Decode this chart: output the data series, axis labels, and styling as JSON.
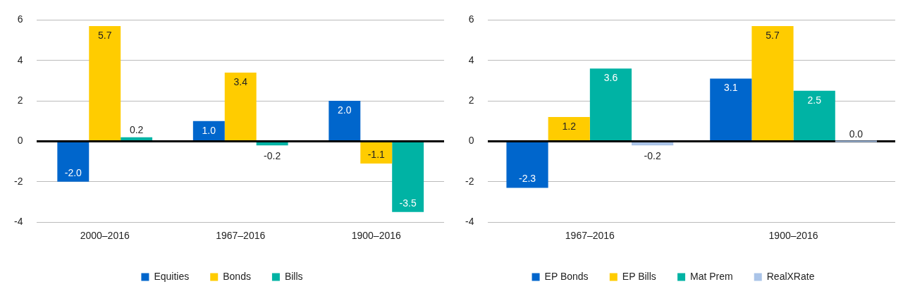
{
  "chart_data": [
    {
      "type": "bar",
      "categories": [
        "2000–2016",
        "1967–2016",
        "1900–2016"
      ],
      "series": [
        {
          "name": "Equities",
          "color": "#0066cc",
          "values": [
            -2.0,
            1.0,
            2.0
          ],
          "value_labels": [
            "-2.0",
            "1.0",
            "2.0"
          ]
        },
        {
          "name": "Bonds",
          "color": "#ffcc00",
          "values": [
            5.7,
            3.4,
            -1.1
          ],
          "value_labels": [
            "5.7",
            "3.4",
            "-1.1"
          ]
        },
        {
          "name": "Bills",
          "color": "#00b3a4",
          "values": [
            0.2,
            -0.2,
            -3.5
          ],
          "value_labels": [
            "0.2",
            "-0.2",
            "-3.5"
          ]
        }
      ],
      "ylim": [
        -4,
        6
      ],
      "yticks": [
        -4,
        -2,
        0,
        2,
        4,
        6
      ],
      "grid": "y",
      "legend": "bottom"
    },
    {
      "type": "bar",
      "categories": [
        "1967–2016",
        "1900–2016"
      ],
      "series": [
        {
          "name": "EP Bonds",
          "color": "#0066cc",
          "values": [
            -2.3,
            3.1
          ],
          "value_labels": [
            "-2.3",
            "3.1"
          ]
        },
        {
          "name": "EP Bills",
          "color": "#ffcc00",
          "values": [
            1.2,
            5.7
          ],
          "value_labels": [
            "1.2",
            "5.7"
          ]
        },
        {
          "name": "Mat Prem",
          "color": "#00b3a4",
          "values": [
            3.6,
            2.5
          ],
          "value_labels": [
            "3.6",
            "2.5"
          ]
        },
        {
          "name": "RealXRate",
          "color": "#aac4e8",
          "values": [
            -0.2,
            0.0
          ],
          "value_labels": [
            "-0.2",
            "0.0"
          ]
        }
      ],
      "ylim": [
        -4,
        6
      ],
      "yticks": [
        -4,
        -2,
        0,
        2,
        4,
        6
      ],
      "grid": "y",
      "legend": "bottom"
    }
  ]
}
